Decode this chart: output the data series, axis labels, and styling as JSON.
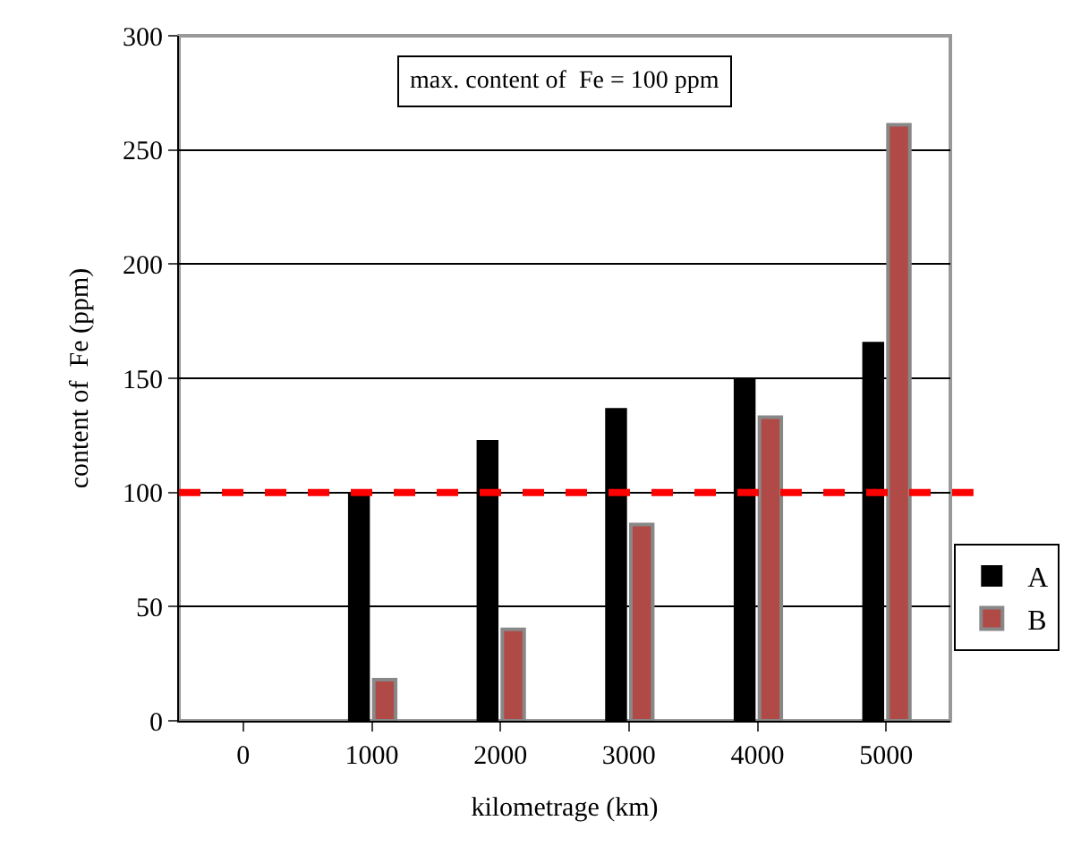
{
  "chart_data": {
    "type": "bar",
    "xlabel": "kilometrage (km)",
    "ylabel": "content of  Fe (ppm)",
    "categories": [
      "0",
      "1000",
      "2000",
      "3000",
      "4000",
      "5000"
    ],
    "series": [
      {
        "name": "A",
        "color": "#000000",
        "values": [
          null,
          100,
          123,
          137,
          150,
          166
        ]
      },
      {
        "name": "B",
        "color": "#b04a46",
        "values": [
          null,
          18,
          40,
          86,
          133,
          261
        ]
      }
    ],
    "ylim": [
      0,
      300
    ],
    "yticks": [
      0,
      50,
      100,
      150,
      200,
      250,
      300
    ],
    "grid": "y",
    "legend": "bottom right",
    "ref_lines": [
      {
        "axis": "y",
        "value": 100,
        "color": "#ff0000",
        "line_style": "dashed"
      }
    ],
    "annotations": [
      "max. content of  Fe = 100 ppm"
    ]
  }
}
